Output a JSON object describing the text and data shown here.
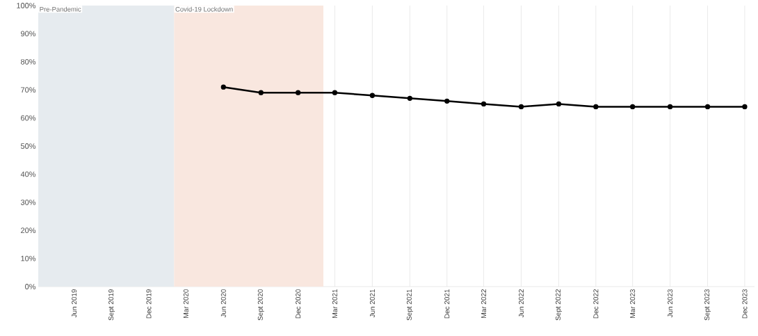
{
  "chart_data": {
    "type": "line",
    "x": [
      "2020-06-01",
      "2020-09-01",
      "2020-12-01",
      "2021-03-01",
      "2021-06-01",
      "2021-09-01",
      "2021-12-01",
      "2022-03-01",
      "2022-06-01",
      "2022-09-01",
      "2022-12-01",
      "2023-03-01",
      "2023-06-01",
      "2023-09-01",
      "2023-12-01"
    ],
    "series": [
      {
        "color": "#000000",
        "values": [
          71,
          69,
          69,
          69,
          68,
          67,
          66,
          65,
          64,
          65,
          64,
          64,
          64,
          64,
          64
        ]
      }
    ],
    "marker": "circle",
    "line_style": "solid",
    "grid": "x",
    "xlim": [
      "2019-03-05",
      "2023-12-25"
    ],
    "ylim": [
      0,
      100
    ],
    "yticks": [
      {
        "value": 0,
        "label": "0%"
      },
      {
        "value": 10,
        "label": "10%"
      },
      {
        "value": 20,
        "label": "20%"
      },
      {
        "value": 30,
        "label": "30%"
      },
      {
        "value": 40,
        "label": "40%"
      },
      {
        "value": 50,
        "label": "50%"
      },
      {
        "value": 60,
        "label": "60%"
      },
      {
        "value": 70,
        "label": "70%"
      },
      {
        "value": 80,
        "label": "80%"
      },
      {
        "value": 90,
        "label": "90%"
      },
      {
        "value": 100,
        "label": "100%"
      }
    ],
    "xticks": [
      {
        "value": "2019-06-01",
        "label": "Jun 2019"
      },
      {
        "value": "2019-09-01",
        "label": "Sept 2019"
      },
      {
        "value": "2019-12-01",
        "label": "Dec 2019"
      },
      {
        "value": "2020-03-01",
        "label": "Mar 2020"
      },
      {
        "value": "2020-06-01",
        "label": "Jun 2020"
      },
      {
        "value": "2020-09-01",
        "label": "Sept 2020"
      },
      {
        "value": "2020-12-01",
        "label": "Dec 2020"
      },
      {
        "value": "2021-03-01",
        "label": "Mar 2021"
      },
      {
        "value": "2021-06-01",
        "label": "Jun 2021"
      },
      {
        "value": "2021-09-01",
        "label": "Sept 2021"
      },
      {
        "value": "2021-12-01",
        "label": "Dec 2021"
      },
      {
        "value": "2022-03-01",
        "label": "Mar 2022"
      },
      {
        "value": "2022-06-01",
        "label": "Jun 2022"
      },
      {
        "value": "2022-09-01",
        "label": "Sept 2022"
      },
      {
        "value": "2022-12-01",
        "label": "Dec 2022"
      },
      {
        "value": "2023-03-01",
        "label": "Mar 2023"
      },
      {
        "value": "2023-06-01",
        "label": "Jun 2023"
      },
      {
        "value": "2023-09-01",
        "label": "Sept 2023"
      },
      {
        "value": "2023-12-01",
        "label": "Dec 2023"
      }
    ],
    "bands": [
      {
        "axis": "x",
        "from": "2019-03-05",
        "to": "2020-02-01",
        "label": "Pre-Pandemic",
        "color": "#e6ebef"
      },
      {
        "axis": "x",
        "from": "2020-02-01",
        "to": "2021-02-01",
        "label": "Covid-19 Lockdown",
        "color": "#f9e7df"
      }
    ]
  }
}
